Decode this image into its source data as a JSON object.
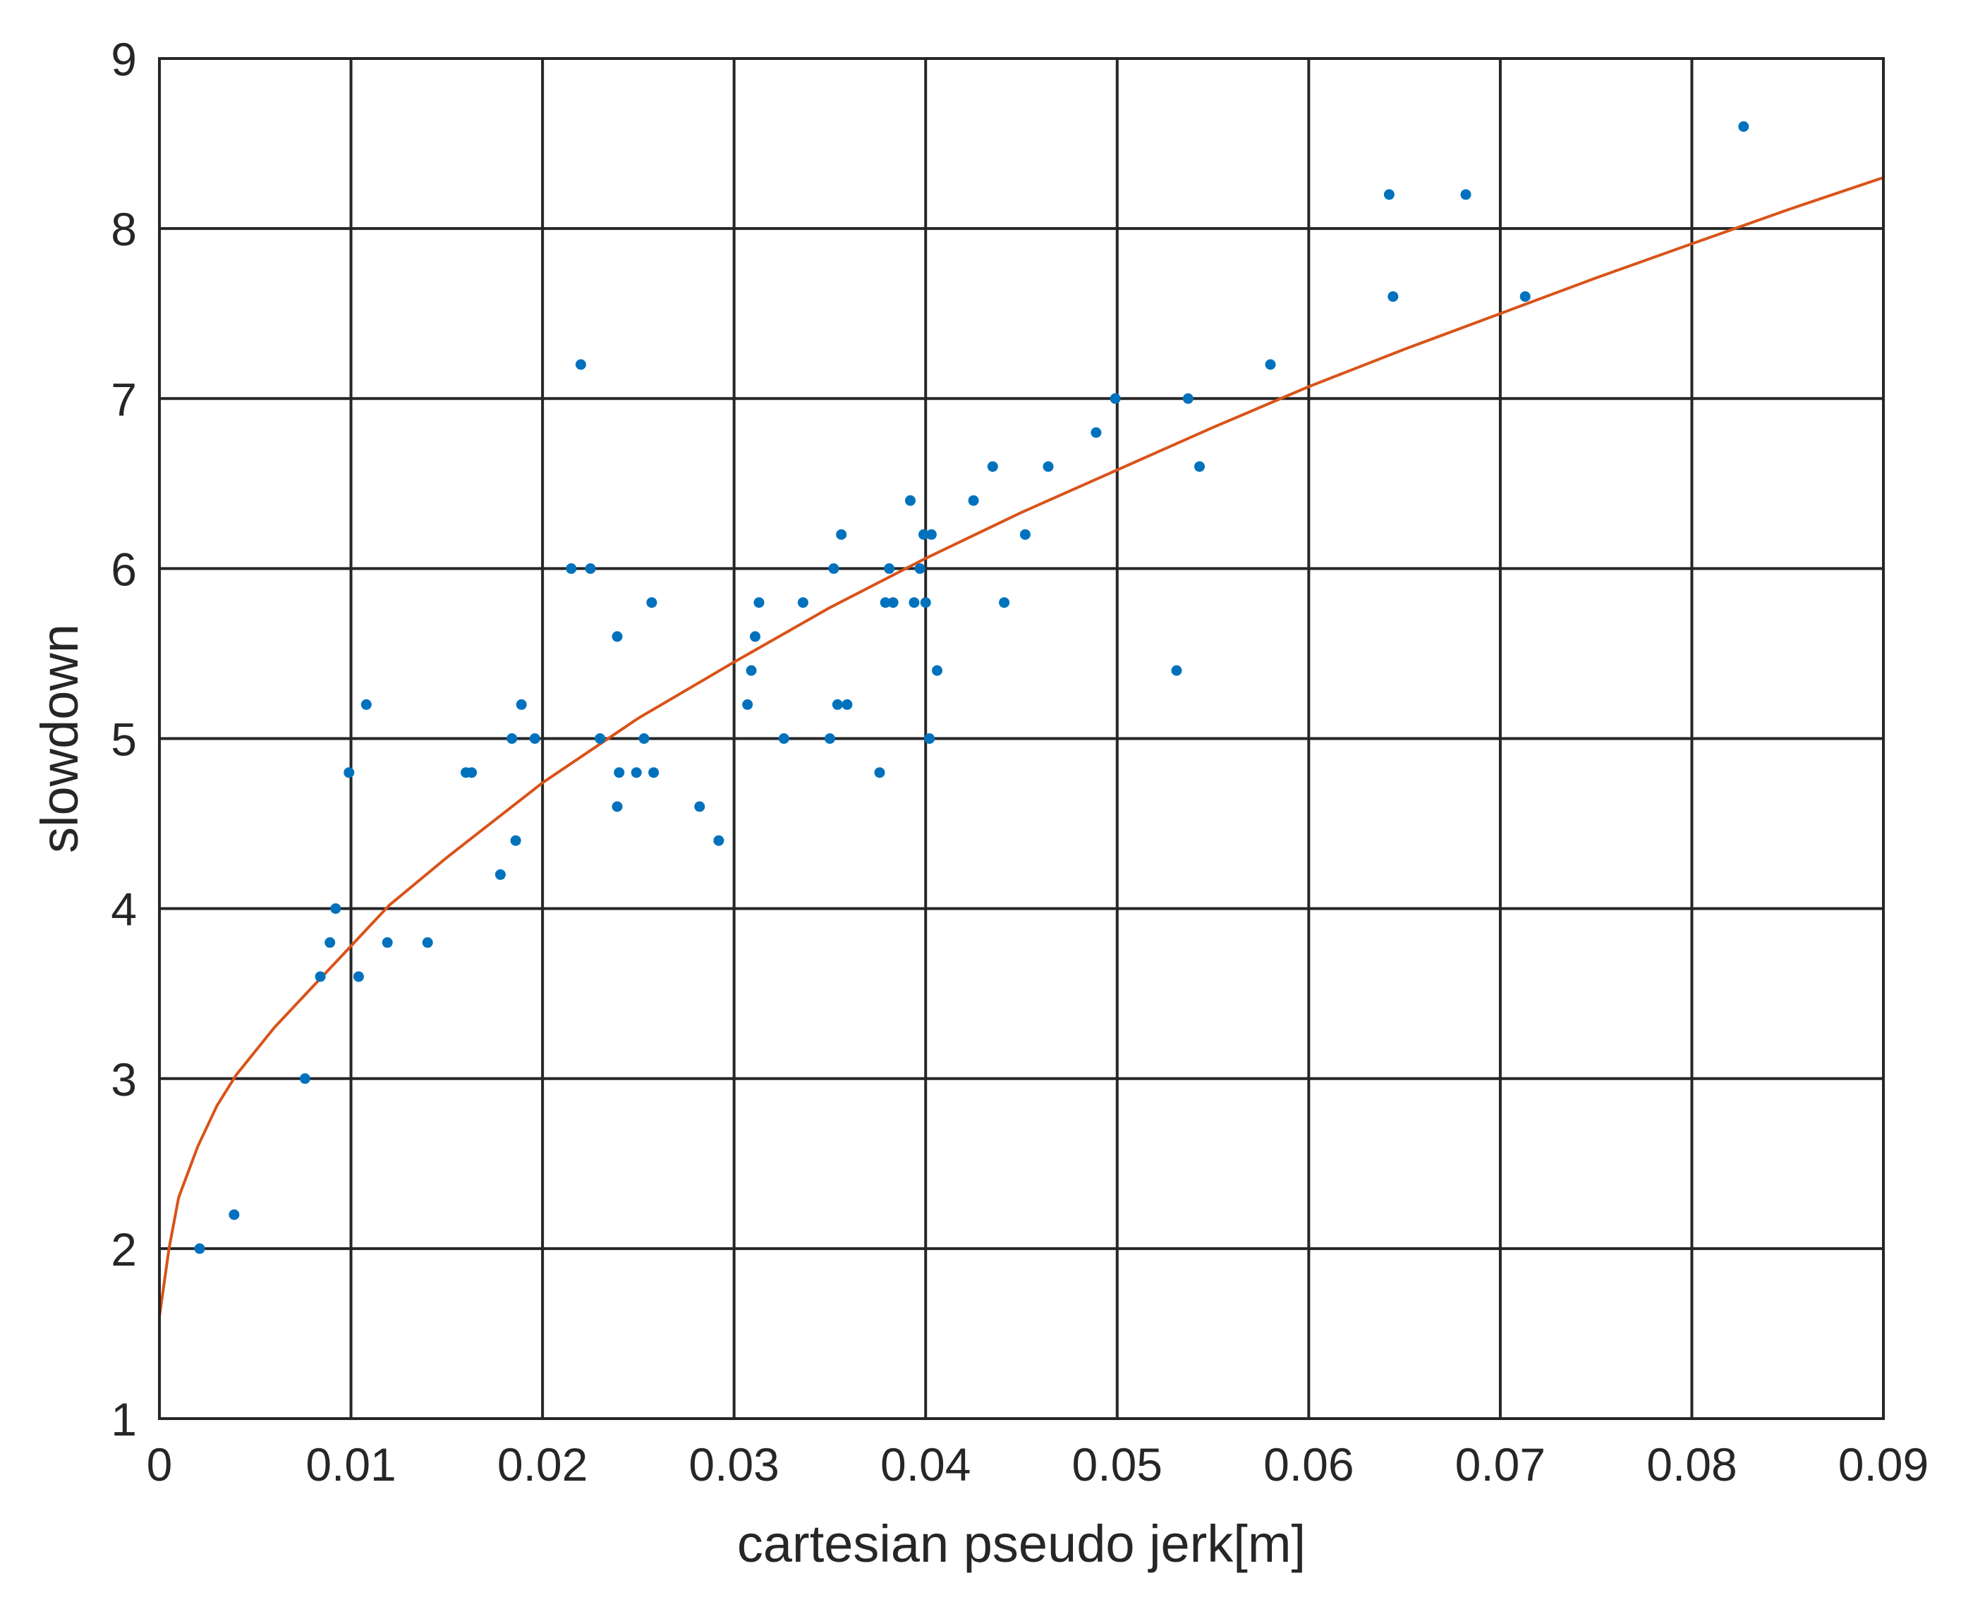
{
  "chart_data": {
    "type": "scatter",
    "xlabel": "cartesian pseudo jerk[m]",
    "ylabel": "slowdown",
    "xlim": [
      0,
      0.09
    ],
    "ylim": [
      1,
      9
    ],
    "grid": true,
    "x_ticks": [
      "0",
      "0.01",
      "0.02",
      "0.03",
      "0.04",
      "0.05",
      "0.06",
      "0.07",
      "0.08",
      "0.09"
    ],
    "y_ticks": [
      "1",
      "2",
      "3",
      "4",
      "5",
      "6",
      "7",
      "8",
      "9"
    ],
    "colors": {
      "points": "#0072BD",
      "fit": "#D95319",
      "grid": "#262626"
    },
    "series": [
      {
        "type": "scatter",
        "points": [
          [
            0.0021,
            2.0
          ],
          [
            0.0039,
            2.2
          ],
          [
            0.0076,
            3.0
          ],
          [
            0.0084,
            3.6
          ],
          [
            0.0089,
            3.8
          ],
          [
            0.0092,
            4.0
          ],
          [
            0.0099,
            4.8
          ],
          [
            0.0104,
            3.6
          ],
          [
            0.0108,
            5.2
          ],
          [
            0.0119,
            3.8
          ],
          [
            0.014,
            3.8
          ],
          [
            0.016,
            4.8
          ],
          [
            0.0163,
            4.8
          ],
          [
            0.0178,
            4.2
          ],
          [
            0.0184,
            5.0
          ],
          [
            0.0186,
            4.4
          ],
          [
            0.0189,
            5.2
          ],
          [
            0.0196,
            5.0
          ],
          [
            0.0215,
            6.0
          ],
          [
            0.022,
            7.2
          ],
          [
            0.0225,
            6.0
          ],
          [
            0.023,
            5.0
          ],
          [
            0.0239,
            5.6
          ],
          [
            0.0239,
            4.6
          ],
          [
            0.024,
            4.8
          ],
          [
            0.0249,
            4.8
          ],
          [
            0.0253,
            5.0
          ],
          [
            0.0257,
            5.8
          ],
          [
            0.0258,
            4.8
          ],
          [
            0.0282,
            4.6
          ],
          [
            0.0292,
            4.4
          ],
          [
            0.0307,
            5.2
          ],
          [
            0.0309,
            5.4
          ],
          [
            0.0311,
            5.6
          ],
          [
            0.0313,
            5.8
          ],
          [
            0.0326,
            5.0
          ],
          [
            0.0336,
            5.8
          ],
          [
            0.035,
            5.0
          ],
          [
            0.0352,
            6.0
          ],
          [
            0.0354,
            5.2
          ],
          [
            0.0356,
            6.2
          ],
          [
            0.0359,
            5.2
          ],
          [
            0.0376,
            4.8
          ],
          [
            0.0379,
            5.8
          ],
          [
            0.0381,
            6.0
          ],
          [
            0.0383,
            5.8
          ],
          [
            0.0392,
            6.4
          ],
          [
            0.0394,
            5.8
          ],
          [
            0.0397,
            6.0
          ],
          [
            0.0399,
            6.2
          ],
          [
            0.04,
            5.8
          ],
          [
            0.0402,
            5.0
          ],
          [
            0.0403,
            6.2
          ],
          [
            0.0406,
            5.4
          ],
          [
            0.0425,
            6.4
          ],
          [
            0.0435,
            6.6
          ],
          [
            0.0441,
            5.8
          ],
          [
            0.0452,
            6.2
          ],
          [
            0.0464,
            6.6
          ],
          [
            0.0489,
            6.8
          ],
          [
            0.0499,
            7.0
          ],
          [
            0.0531,
            5.4
          ],
          [
            0.0537,
            7.0
          ],
          [
            0.0543,
            6.6
          ],
          [
            0.058,
            7.2
          ],
          [
            0.0642,
            8.2
          ],
          [
            0.0644,
            7.6
          ],
          [
            0.0682,
            8.2
          ],
          [
            0.0713,
            7.6
          ],
          [
            0.0827,
            8.6
          ]
        ]
      },
      {
        "type": "line",
        "points": [
          [
            0.0,
            1.6
          ],
          [
            0.0005,
            2.0
          ],
          [
            0.001,
            2.3
          ],
          [
            0.002,
            2.6
          ],
          [
            0.003,
            2.84
          ],
          [
            0.004,
            3.02
          ],
          [
            0.006,
            3.3
          ],
          [
            0.008,
            3.54
          ],
          [
            0.01,
            3.78
          ],
          [
            0.012,
            4.02
          ],
          [
            0.015,
            4.3
          ],
          [
            0.02,
            4.74
          ],
          [
            0.025,
            5.12
          ],
          [
            0.03,
            5.45
          ],
          [
            0.035,
            5.77
          ],
          [
            0.04,
            6.06
          ],
          [
            0.045,
            6.33
          ],
          [
            0.05,
            6.58
          ],
          [
            0.055,
            6.83
          ],
          [
            0.06,
            7.07
          ],
          [
            0.065,
            7.29
          ],
          [
            0.07,
            7.5
          ],
          [
            0.075,
            7.71
          ],
          [
            0.08,
            7.91
          ],
          [
            0.085,
            8.11
          ],
          [
            0.09,
            8.3
          ]
        ]
      }
    ]
  }
}
